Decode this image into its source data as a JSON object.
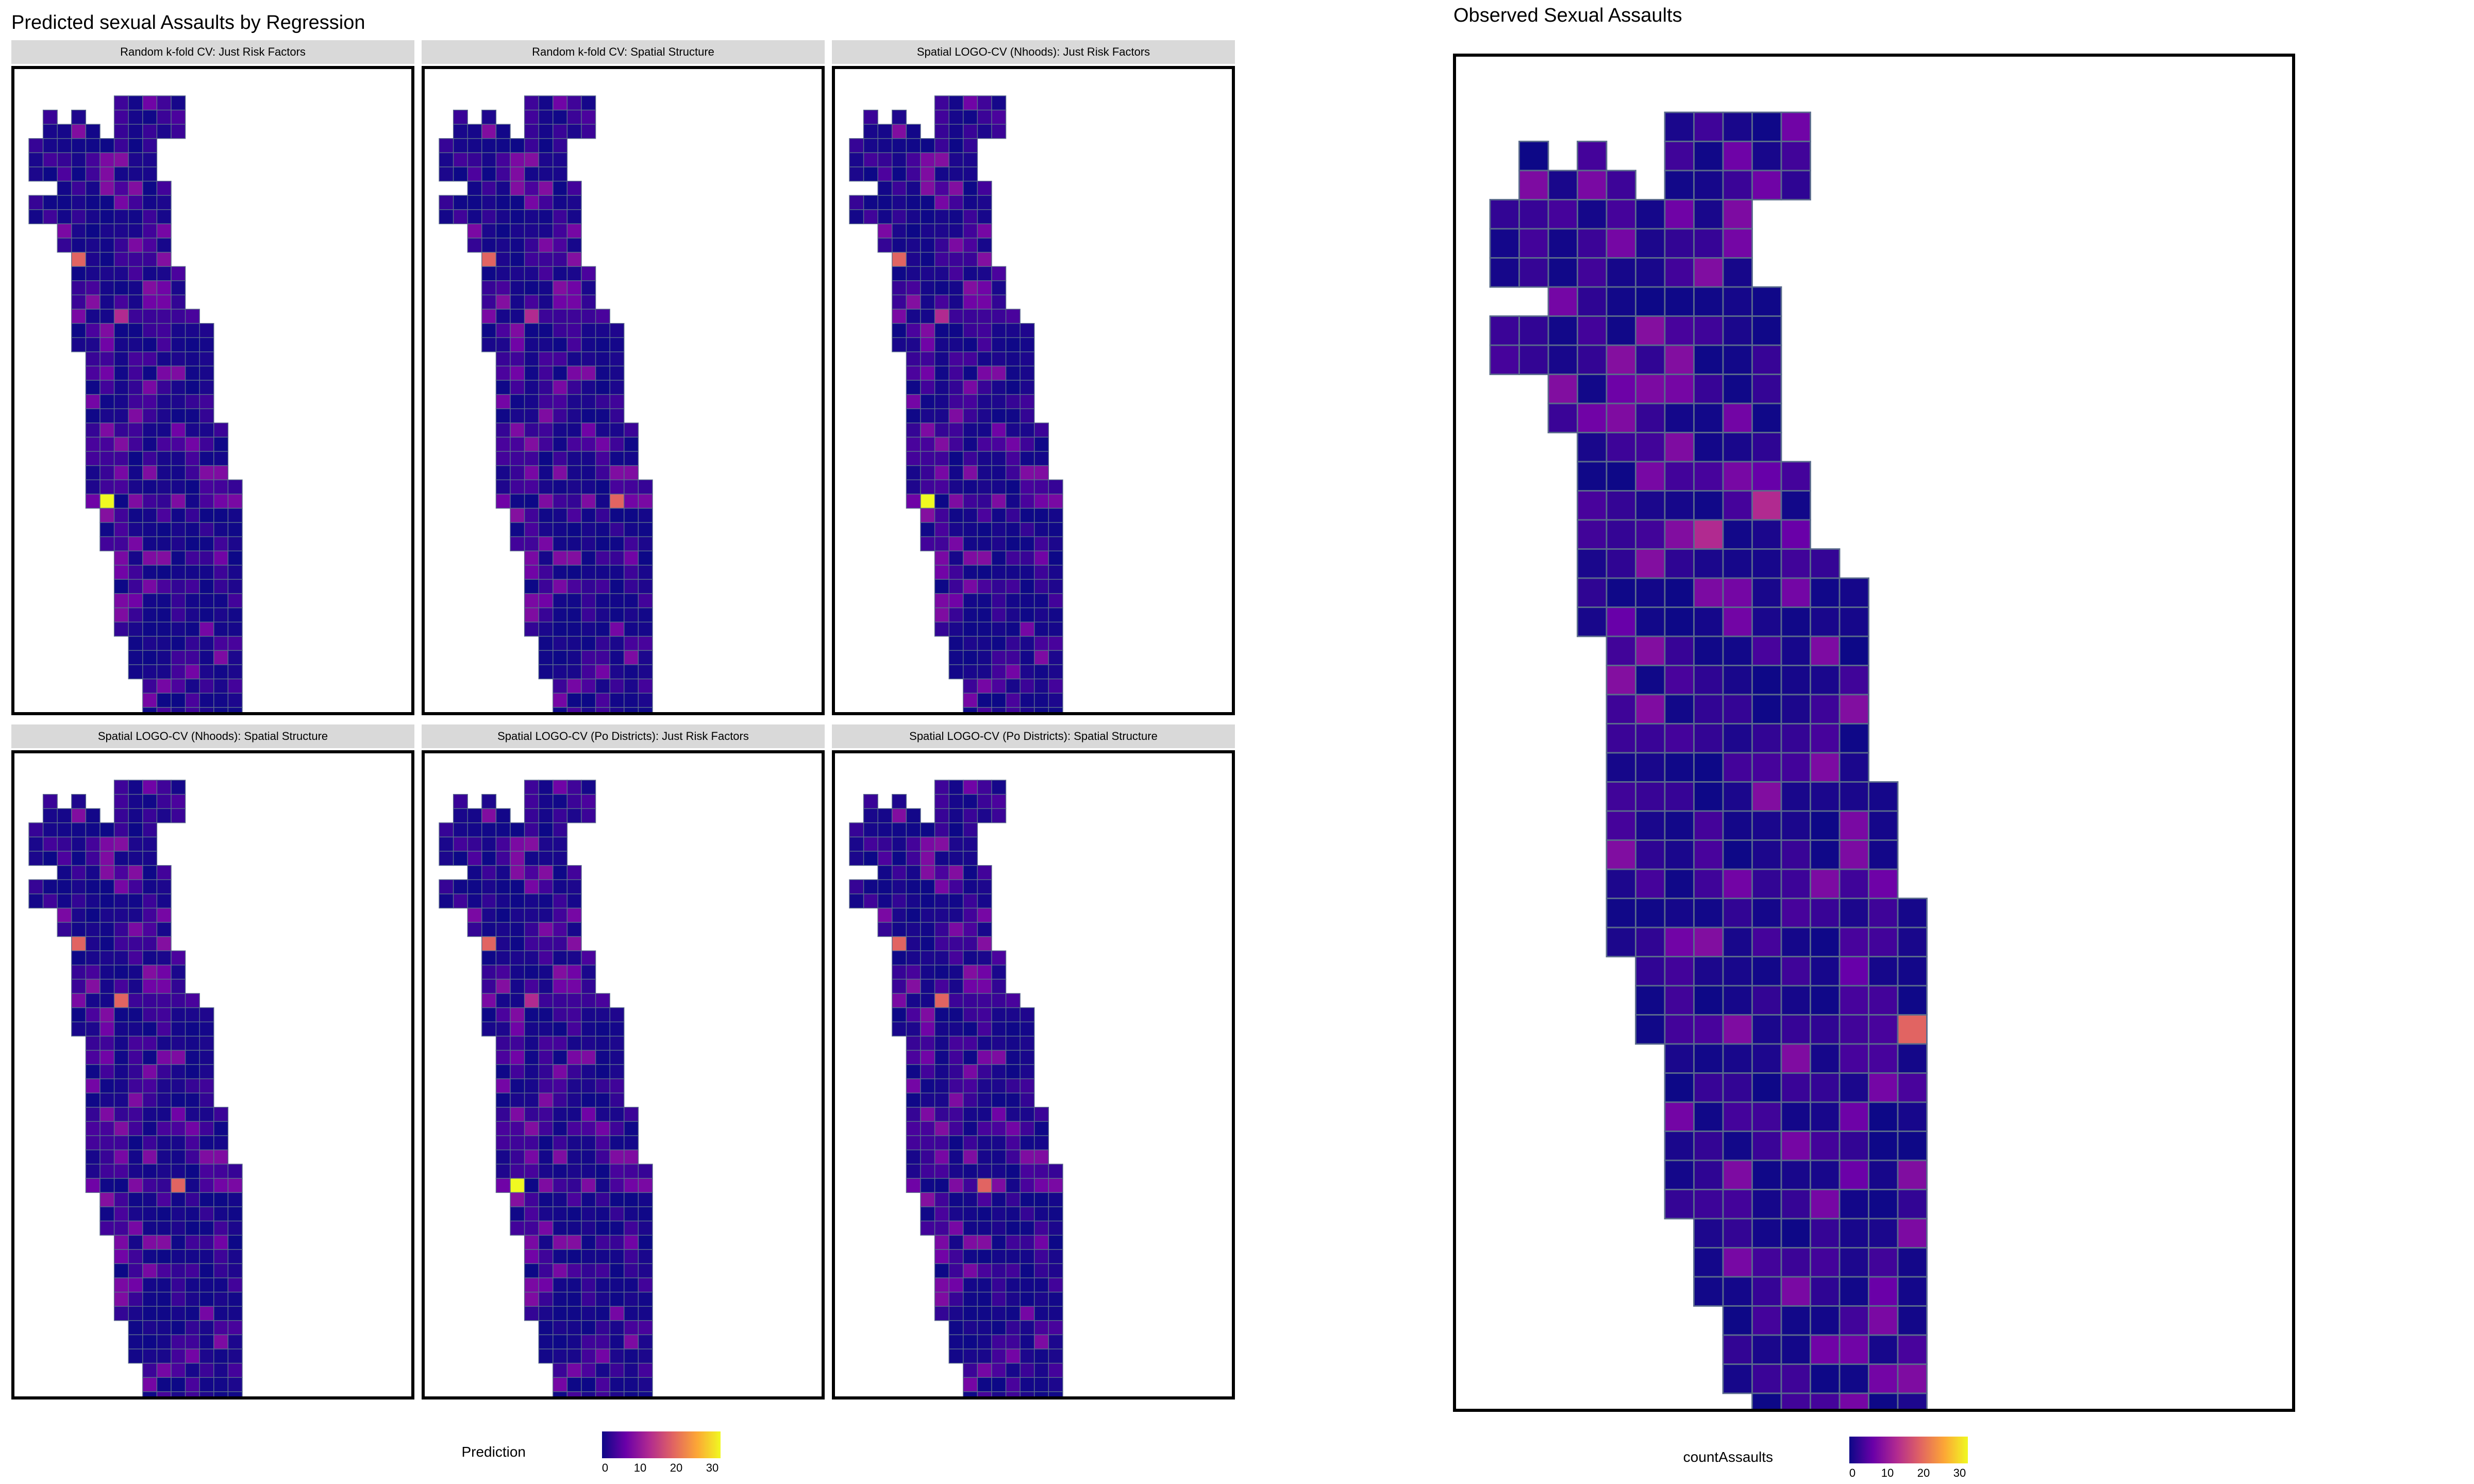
{
  "left_title": "Predicted sexual Assaults by Regression",
  "right_title": "Observed Sexual Assaults",
  "panels": [
    {
      "name": "random-kfold-just-risk-factors",
      "label": "Random k-fold CV: Just Risk Factors",
      "hotspots": [
        [
          28,
          5,
          "peak"
        ],
        [
          11,
          10,
          "med"
        ],
        [
          11,
          3,
          "med"
        ],
        [
          15,
          6,
          "low"
        ]
      ]
    },
    {
      "name": "random-kfold-spatial-structure",
      "label": "Random k-fold CV: Spatial Structure",
      "hotspots": [
        [
          28,
          12,
          "med"
        ],
        [
          11,
          10,
          "med"
        ],
        [
          11,
          3,
          "med"
        ],
        [
          15,
          6,
          "low"
        ]
      ]
    },
    {
      "name": "logo-nhoods-just-risk-factors",
      "label": "Spatial LOGO-CV (Nhoods): Just Risk Factors",
      "hotspots": [
        [
          28,
          5,
          "peak"
        ],
        [
          11,
          10,
          "med"
        ],
        [
          11,
          3,
          "med"
        ],
        [
          15,
          6,
          "low"
        ]
      ]
    },
    {
      "name": "logo-nhoods-spatial-structure",
      "label": "Spatial LOGO-CV (Nhoods): Spatial Structure",
      "hotspots": [
        [
          28,
          10,
          "med"
        ],
        [
          11,
          10,
          "med"
        ],
        [
          11,
          3,
          "med"
        ],
        [
          15,
          6,
          "med"
        ]
      ]
    },
    {
      "name": "logo-podistricts-just-risk-factors",
      "label": "Spatial LOGO-CV (Po Districts): Just Risk Factors",
      "hotspots": [
        [
          28,
          5,
          "peak"
        ],
        [
          11,
          10,
          "med"
        ],
        [
          11,
          3,
          "med"
        ],
        [
          15,
          6,
          "low"
        ]
      ]
    },
    {
      "name": "logo-podistricts-spatial-structure",
      "label": "Spatial LOGO-CV (Po Districts): Spatial Structure",
      "hotspots": [
        [
          28,
          9,
          "med"
        ],
        [
          11,
          10,
          "med"
        ],
        [
          11,
          3,
          "med"
        ],
        [
          15,
          6,
          "med"
        ]
      ]
    }
  ],
  "observed_hotspots": [
    [
      16,
      17,
      "high"
    ],
    [
      15,
      17,
      "med"
    ],
    [
      31,
      14,
      "med"
    ],
    [
      14,
      7,
      "low"
    ],
    [
      13,
      9,
      "low"
    ]
  ],
  "legends": [
    {
      "name": "prediction-legend",
      "title": "Prediction",
      "ticks": [
        "0",
        "10",
        "20",
        "30"
      ]
    },
    {
      "name": "count-legend",
      "title": "countAssaults",
      "ticks": [
        "0",
        "10",
        "20",
        "30"
      ]
    }
  ],
  "colors": {
    "scale": [
      "#0d0887",
      "#6a00a8",
      "#b12a90",
      "#e16462",
      "#fca636",
      "#f0f921"
    ],
    "grid_line": "#5a6b8c",
    "strip": "#d9d9d9"
  },
  "map_rows": [
    [
      [
        6,
        10
      ]
    ],
    [
      [
        1,
        1
      ],
      [
        3,
        3
      ],
      [
        6,
        10
      ]
    ],
    [
      [
        1,
        2
      ],
      [
        3,
        4
      ],
      [
        6,
        10
      ]
    ],
    [
      [
        0,
        8
      ]
    ],
    [
      [
        0,
        8
      ]
    ],
    [
      [
        0,
        1
      ],
      [
        2,
        8
      ]
    ],
    [
      [
        2,
        9
      ]
    ],
    [
      [
        0,
        9
      ]
    ],
    [
      [
        0,
        9
      ]
    ],
    [
      [
        2,
        9
      ]
    ],
    [
      [
        2,
        9
      ]
    ],
    [
      [
        3,
        9
      ]
    ],
    [
      [
        3,
        10
      ]
    ],
    [
      [
        3,
        10
      ]
    ],
    [
      [
        3,
        10
      ]
    ],
    [
      [
        3,
        11
      ]
    ],
    [
      [
        3,
        12
      ]
    ],
    [
      [
        3,
        12
      ]
    ],
    [
      [
        4,
        12
      ]
    ],
    [
      [
        4,
        12
      ]
    ],
    [
      [
        4,
        12
      ]
    ],
    [
      [
        4,
        12
      ]
    ],
    [
      [
        4,
        12
      ]
    ],
    [
      [
        4,
        13
      ]
    ],
    [
      [
        4,
        13
      ]
    ],
    [
      [
        4,
        13
      ]
    ],
    [
      [
        4,
        13
      ]
    ],
    [
      [
        4,
        14
      ]
    ],
    [
      [
        4,
        14
      ]
    ],
    [
      [
        5,
        14
      ]
    ],
    [
      [
        5,
        14
      ]
    ],
    [
      [
        5,
        14
      ]
    ],
    [
      [
        6,
        14
      ]
    ],
    [
      [
        6,
        14
      ]
    ],
    [
      [
        6,
        14
      ]
    ],
    [
      [
        6,
        14
      ]
    ],
    [
      [
        6,
        14
      ]
    ],
    [
      [
        6,
        14
      ]
    ],
    [
      [
        7,
        14
      ]
    ],
    [
      [
        7,
        14
      ]
    ],
    [
      [
        7,
        14
      ]
    ],
    [
      [
        8,
        14
      ]
    ],
    [
      [
        8,
        14
      ]
    ],
    [
      [
        8,
        14
      ]
    ],
    [
      [
        9,
        14
      ]
    ],
    [
      [
        9,
        14
      ]
    ]
  ]
}
